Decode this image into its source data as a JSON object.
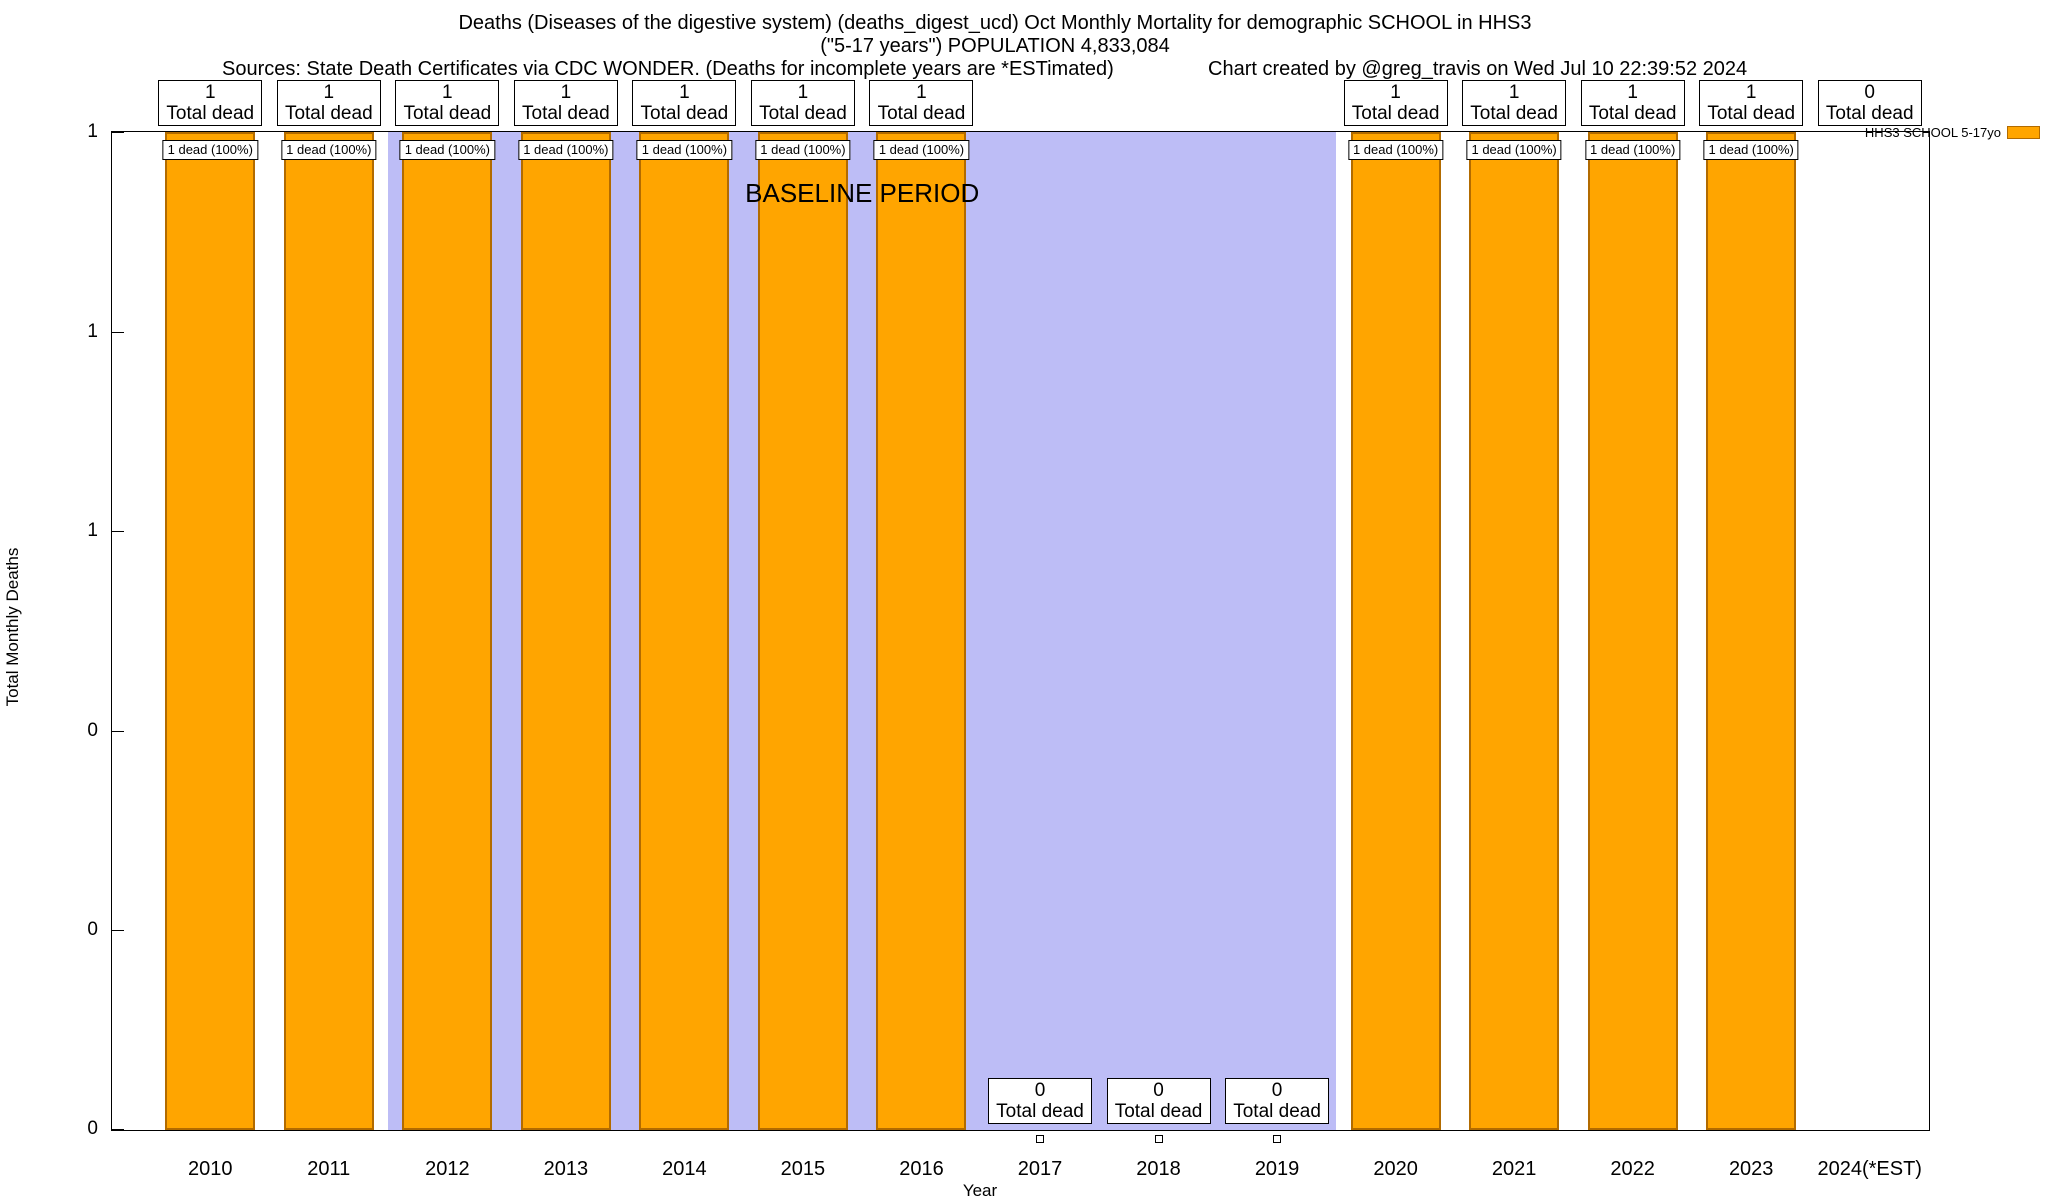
{
  "header": {
    "title": "Deaths (Diseases of the digestive system) (deaths_digest_ucd) Oct Monthly Mortality for demographic SCHOOL in HHS3",
    "subtitle": "(\"5-17 years\") POPULATION 4,833,084",
    "sources": "Sources: State Death Certificates via CDC WONDER. (Deaths for incomplete years are *ESTimated)",
    "credit": "Chart created by @greg_travis on Wed Jul 10 22:39:52 2024"
  },
  "chart_data": {
    "type": "bar",
    "xlabel": "Year",
    "ylabel": "Total Monthly Deaths",
    "ylim": [
      0,
      1
    ],
    "grid": false,
    "legend": {
      "label": "HHS3 SCHOOL 5-17yo",
      "color": "#ffa500",
      "position": "top-right"
    },
    "colors": {
      "bar_fill": "#ffa500",
      "bar_border": "#b26b00",
      "baseline_fill": "#bdbdf6"
    },
    "total_text": "Total dead",
    "yticks": [
      {
        "value": 1.0,
        "label": "1"
      },
      {
        "value": 0.8,
        "label": "1"
      },
      {
        "value": 0.6,
        "label": "1"
      },
      {
        "value": 0.4,
        "label": "0"
      },
      {
        "value": 0.2,
        "label": "0"
      },
      {
        "value": 0.0,
        "label": "0"
      }
    ],
    "categories": [
      "2010",
      "2011",
      "2012",
      "2013",
      "2014",
      "2015",
      "2016",
      "2017",
      "2018",
      "2019",
      "2020",
      "2021",
      "2022",
      "2023",
      "2024(*EST)"
    ],
    "values": [
      1,
      1,
      1,
      1,
      1,
      1,
      1,
      0,
      0,
      0,
      1,
      1,
      1,
      1,
      0
    ],
    "bars": [
      {
        "category": "2010",
        "value": 1,
        "total": "1",
        "label_pos": "top",
        "inbar": "1 dead (100%)",
        "zero_marker": false
      },
      {
        "category": "2011",
        "value": 1,
        "total": "1",
        "label_pos": "top",
        "inbar": "1 dead (100%)",
        "zero_marker": false
      },
      {
        "category": "2012",
        "value": 1,
        "total": "1",
        "label_pos": "top",
        "inbar": "1 dead (100%)",
        "zero_marker": false
      },
      {
        "category": "2013",
        "value": 1,
        "total": "1",
        "label_pos": "top",
        "inbar": "1 dead (100%)",
        "zero_marker": false
      },
      {
        "category": "2014",
        "value": 1,
        "total": "1",
        "label_pos": "top",
        "inbar": "1 dead (100%)",
        "zero_marker": false
      },
      {
        "category": "2015",
        "value": 1,
        "total": "1",
        "label_pos": "top",
        "inbar": "1 dead (100%)",
        "zero_marker": false
      },
      {
        "category": "2016",
        "value": 1,
        "total": "1",
        "label_pos": "top",
        "inbar": "1 dead (100%)",
        "zero_marker": false
      },
      {
        "category": "2017",
        "value": 0,
        "total": "0",
        "label_pos": "bottom",
        "inbar": null,
        "zero_marker": true
      },
      {
        "category": "2018",
        "value": 0,
        "total": "0",
        "label_pos": "bottom",
        "inbar": null,
        "zero_marker": true
      },
      {
        "category": "2019",
        "value": 0,
        "total": "0",
        "label_pos": "bottom",
        "inbar": null,
        "zero_marker": true
      },
      {
        "category": "2020",
        "value": 1,
        "total": "1",
        "label_pos": "top",
        "inbar": "1 dead (100%)",
        "zero_marker": false
      },
      {
        "category": "2021",
        "value": 1,
        "total": "1",
        "label_pos": "top",
        "inbar": "1 dead (100%)",
        "zero_marker": false
      },
      {
        "category": "2022",
        "value": 1,
        "total": "1",
        "label_pos": "top",
        "inbar": "1 dead (100%)",
        "zero_marker": false
      },
      {
        "category": "2023",
        "value": 1,
        "total": "1",
        "label_pos": "top",
        "inbar": "1 dead (100%)",
        "zero_marker": false
      },
      {
        "category": "2024(*EST)",
        "value": 0,
        "total": "0",
        "label_pos": "top",
        "inbar": null,
        "zero_marker": false
      }
    ],
    "baseline": {
      "label": "BASELINE PERIOD",
      "start_index": 2,
      "end_index": 10,
      "span_years": [
        "2012",
        "2019"
      ]
    }
  }
}
